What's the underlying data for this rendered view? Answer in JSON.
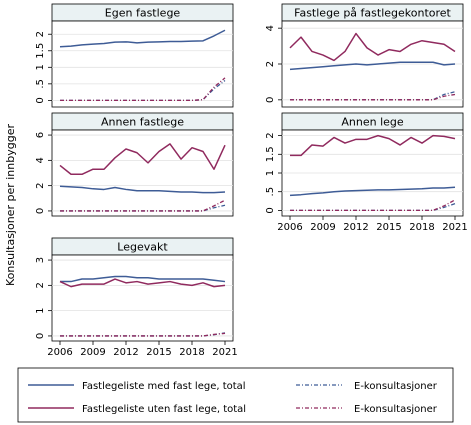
{
  "chart_data": {
    "type": "line",
    "ylabel": "Konsultasjoner per innbygger",
    "colors": {
      "med_fast_lege": "#3e5c96",
      "uten_fast_lege": "#902a5e",
      "e_konsult_med": "#3e5c96",
      "e_konsult_uten": "#902a5e"
    },
    "legend": {
      "placement": "bottom",
      "entries": [
        "Fastlegeliste med fast lege, total",
        "E-konsultasjoner",
        "Fastlegeliste uten fast lege, total",
        "E-konsultasjoner"
      ]
    },
    "panels": [
      {
        "title": "Egen fastlege",
        "ylim": [
          -0.2,
          2.4
        ],
        "yticks": [
          0,
          0.5,
          1,
          1.5,
          2
        ],
        "yticklabels": [
          "0",
          ".5",
          "1",
          "1.5",
          "2"
        ],
        "xticks": [],
        "series": [
          {
            "key": "med_fast_lege",
            "values": [
              1.62,
              1.64,
              1.68,
              1.7,
              1.72,
              1.76,
              1.77,
              1.74,
              1.76,
              1.77,
              1.78,
              1.78,
              1.79,
              1.8,
              1.95,
              2.12
            ]
          },
          {
            "key": "e_konsult_med",
            "values": [
              0,
              0,
              0,
              0,
              0,
              0,
              0,
              0,
              0,
              0,
              0,
              0,
              0,
              0.02,
              0.35,
              0.6
            ]
          },
          {
            "key": "e_konsult_uten",
            "values": [
              0,
              0,
              0,
              0,
              0,
              0,
              0,
              0,
              0,
              0,
              0,
              0,
              0,
              0.02,
              0.4,
              0.68
            ]
          }
        ]
      },
      {
        "title": "Fastlege på fastlegekontoret",
        "ylim": [
          -0.4,
          4.4
        ],
        "yticks": [
          0,
          2,
          4
        ],
        "yticklabels": [
          "0",
          "2",
          "4"
        ],
        "xticks": [],
        "series": [
          {
            "key": "uten_fast_lege",
            "values": [
              2.9,
              3.5,
              2.7,
              2.5,
              2.2,
              2.7,
              3.7,
              2.9,
              2.5,
              2.8,
              2.7,
              3.1,
              3.3,
              3.2,
              3.1,
              2.7
            ]
          },
          {
            "key": "med_fast_lege",
            "values": [
              1.7,
              1.75,
              1.8,
              1.85,
              1.9,
              1.95,
              2.0,
              1.95,
              2.0,
              2.05,
              2.1,
              2.1,
              2.1,
              2.1,
              1.95,
              2.0
            ]
          },
          {
            "key": "e_konsult_med",
            "values": [
              0,
              0,
              0,
              0,
              0,
              0,
              0,
              0,
              0,
              0,
              0,
              0,
              0,
              0,
              0.3,
              0.45
            ]
          },
          {
            "key": "e_konsult_uten",
            "values": [
              0,
              0,
              0,
              0,
              0,
              0,
              0,
              0,
              0,
              0,
              0,
              0,
              0,
              0,
              0.2,
              0.3
            ]
          }
        ]
      },
      {
        "title": "Annen fastlege",
        "ylim": [
          -0.4,
          6.4
        ],
        "yticks": [
          0,
          2,
          4,
          6
        ],
        "yticklabels": [
          "0",
          "2",
          "4",
          "6"
        ],
        "xticks": [],
        "series": [
          {
            "key": "uten_fast_lege",
            "values": [
              3.6,
              2.9,
              2.9,
              3.3,
              3.3,
              4.2,
              4.9,
              4.6,
              3.8,
              4.7,
              5.3,
              4.1,
              5.0,
              4.7,
              3.3,
              5.2
            ]
          },
          {
            "key": "med_fast_lege",
            "values": [
              1.95,
              1.9,
              1.85,
              1.75,
              1.7,
              1.85,
              1.7,
              1.6,
              1.6,
              1.6,
              1.55,
              1.5,
              1.5,
              1.45,
              1.45,
              1.5
            ]
          },
          {
            "key": "e_konsult_med",
            "values": [
              0,
              0,
              0,
              0,
              0,
              0,
              0,
              0,
              0,
              0,
              0,
              0,
              0,
              0,
              0.25,
              0.45
            ]
          },
          {
            "key": "e_konsult_uten",
            "values": [
              0,
              0,
              0,
              0,
              0,
              0,
              0,
              0,
              0,
              0,
              0,
              0,
              0,
              0,
              0.4,
              0.85
            ]
          }
        ]
      },
      {
        "title": "Annen lege",
        "ylim": [
          -0.15,
          2.15
        ],
        "yticks": [
          0,
          0.5,
          1,
          1.5,
          2
        ],
        "yticklabels": [
          "0",
          ".5",
          "1",
          "1.5",
          "2"
        ],
        "xticks": [
          "2006",
          "2009",
          "2012",
          "2015",
          "2018",
          "2021"
        ],
        "series": [
          {
            "key": "uten_fast_lege",
            "values": [
              1.47,
              1.47,
              1.75,
              1.72,
              1.95,
              1.8,
              1.9,
              1.9,
              2.0,
              1.92,
              1.75,
              1.95,
              1.8,
              2.0,
              1.98,
              1.92
            ]
          },
          {
            "key": "med_fast_lege",
            "values": [
              0.4,
              0.42,
              0.45,
              0.47,
              0.5,
              0.52,
              0.53,
              0.54,
              0.55,
              0.55,
              0.56,
              0.57,
              0.58,
              0.6,
              0.6,
              0.62
            ]
          },
          {
            "key": "e_konsult_med",
            "values": [
              0,
              0,
              0,
              0,
              0,
              0,
              0,
              0,
              0,
              0,
              0,
              0,
              0,
              0,
              0.08,
              0.18
            ]
          },
          {
            "key": "e_konsult_uten",
            "values": [
              0,
              0,
              0,
              0,
              0,
              0,
              0,
              0,
              0,
              0,
              0,
              0,
              0,
              0,
              0.12,
              0.28
            ]
          }
        ]
      },
      {
        "title": "Legevakt",
        "ylim": [
          -0.2,
          3.2
        ],
        "yticks": [
          0,
          1,
          2,
          3
        ],
        "yticklabels": [
          "0",
          "1",
          "2",
          "3"
        ],
        "xticks": [
          "2006",
          "2009",
          "2012",
          "2015",
          "2018",
          "2021"
        ],
        "series": [
          {
            "key": "med_fast_lege",
            "values": [
              2.15,
              2.15,
              2.25,
              2.25,
              2.3,
              2.35,
              2.35,
              2.3,
              2.3,
              2.25,
              2.25,
              2.25,
              2.25,
              2.25,
              2.2,
              2.15
            ]
          },
          {
            "key": "uten_fast_lege",
            "values": [
              2.15,
              1.95,
              2.05,
              2.05,
              2.05,
              2.25,
              2.1,
              2.15,
              2.05,
              2.1,
              2.15,
              2.05,
              2.0,
              2.1,
              1.95,
              2.0
            ]
          },
          {
            "key": "e_konsult_med",
            "values": [
              0,
              0,
              0,
              0,
              0,
              0,
              0,
              0,
              0,
              0,
              0,
              0,
              0,
              0,
              0.05,
              0.12
            ]
          },
          {
            "key": "e_konsult_uten",
            "values": [
              0,
              0,
              0,
              0,
              0,
              0,
              0,
              0,
              0,
              0,
              0,
              0,
              0,
              0,
              0.06,
              0.1
            ]
          }
        ]
      }
    ],
    "years": [
      2006,
      2007,
      2008,
      2009,
      2010,
      2011,
      2012,
      2013,
      2014,
      2015,
      2016,
      2017,
      2018,
      2019,
      2020,
      2021
    ]
  }
}
